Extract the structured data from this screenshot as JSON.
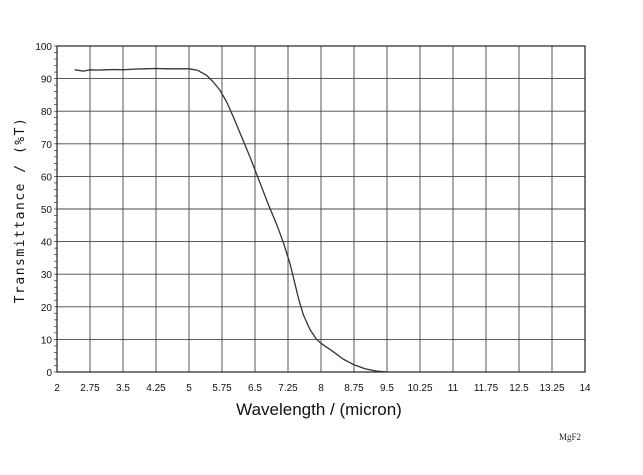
{
  "chart_data": {
    "type": "line",
    "xlabel": "Wavelength / (micron)",
    "ylabel": "Transmittance / (%T)",
    "annotation": "MgF2",
    "xlim": [
      2,
      14
    ],
    "ylim": [
      0,
      100
    ],
    "x_ticks": [
      2,
      2.75,
      3.5,
      4.25,
      5,
      5.75,
      6.5,
      7.25,
      8,
      8.75,
      9.5,
      10.25,
      11,
      11.75,
      12.5,
      13.25,
      14
    ],
    "x_tick_labels": [
      "2",
      "2.75",
      "3.5",
      "4.25",
      "5",
      "5.75",
      "6.5",
      "7.25",
      "8",
      "8.75",
      "9.5",
      "10.25",
      "11",
      "11.75",
      "12.5",
      "13.25",
      "14"
    ],
    "y_ticks": [
      0,
      10,
      20,
      30,
      40,
      50,
      60,
      70,
      80,
      90,
      100
    ],
    "y_tick_labels": [
      "0",
      "10",
      "20",
      "30",
      "40",
      "50",
      "60",
      "70",
      "80",
      "90",
      "100"
    ],
    "grid": true,
    "series": [
      {
        "color": "#333333",
        "x": [
          2.4,
          2.6,
          2.75,
          2.9,
          3.1,
          3.3,
          3.5,
          3.75,
          4.0,
          4.25,
          4.5,
          4.75,
          5.0,
          5.2,
          5.4,
          5.55,
          5.7,
          5.85,
          6.0,
          6.2,
          6.4,
          6.6,
          6.8,
          7.0,
          7.15,
          7.3,
          7.4,
          7.5,
          7.6,
          7.75,
          7.9,
          8.0,
          8.25,
          8.5,
          8.75,
          9.0,
          9.25,
          9.5
        ],
        "y": [
          92.7,
          92.3,
          92.7,
          92.6,
          92.7,
          92.8,
          92.7,
          92.9,
          93.0,
          93.1,
          93.0,
          93.0,
          93.0,
          92.5,
          91.0,
          89.0,
          86.5,
          83.0,
          78.5,
          72.0,
          65.5,
          58.5,
          51.5,
          45.0,
          39.5,
          33.0,
          27.5,
          22.0,
          17.5,
          13.0,
          10.0,
          8.8,
          6.5,
          4.0,
          2.2,
          1.0,
          0.3,
          0.0
        ]
      }
    ]
  }
}
